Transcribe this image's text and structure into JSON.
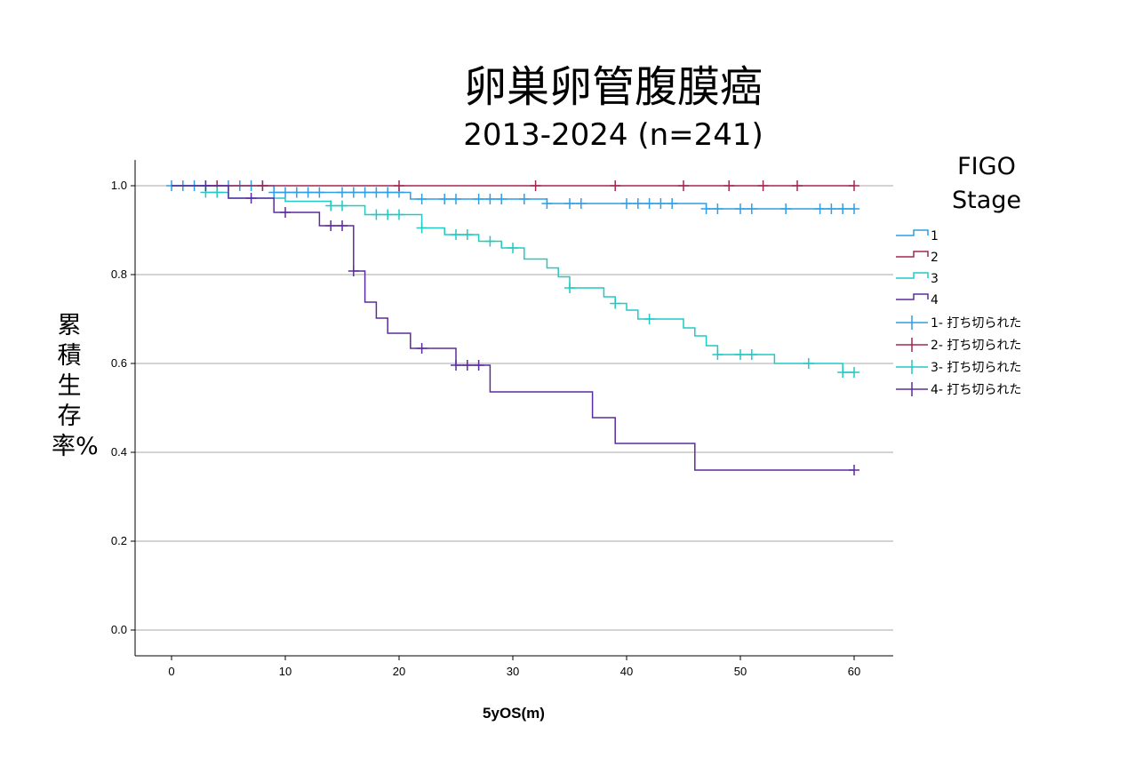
{
  "chart_data": {
    "type": "line",
    "title": "卵巣卵管腹膜癌",
    "subtitle": "2013-2024 (n=241)",
    "xlabel": "5yOS(m)",
    "ylabel": "累積生存率%",
    "xlim": [
      -3,
      63
    ],
    "ylim": [
      -0.05,
      1.06
    ],
    "xticks": [
      0,
      10,
      20,
      30,
      40,
      50,
      60
    ],
    "yticks": [
      0.0,
      0.2,
      0.4,
      0.6,
      0.8,
      1.0
    ],
    "ytick_labels": [
      "0.0",
      "0.2",
      "0.4",
      "0.6",
      "0.8",
      "1.0"
    ],
    "grid": "horizontal",
    "legend_title": "FIGO Stage",
    "legend_placement": "right",
    "series": [
      {
        "name": "1",
        "censor_label": "1- 打ち切られた",
        "color": "#2e9ee6",
        "steps": [
          [
            0,
            1.0
          ],
          [
            9,
            0.985
          ],
          [
            21,
            0.97
          ],
          [
            33,
            0.96
          ],
          [
            47,
            0.948
          ],
          [
            60,
            0.948
          ]
        ],
        "censored": [
          [
            0,
            1.0
          ],
          [
            1,
            1.0
          ],
          [
            2,
            1.0
          ],
          [
            3,
            1.0
          ],
          [
            5,
            1.0
          ],
          [
            6,
            1.0
          ],
          [
            7,
            1.0
          ],
          [
            8,
            1.0
          ],
          [
            9,
            0.985
          ],
          [
            10,
            0.985
          ],
          [
            11,
            0.985
          ],
          [
            12,
            0.985
          ],
          [
            13,
            0.985
          ],
          [
            15,
            0.985
          ],
          [
            16,
            0.985
          ],
          [
            17,
            0.985
          ],
          [
            18,
            0.985
          ],
          [
            19,
            0.985
          ],
          [
            20,
            0.985
          ],
          [
            22,
            0.97
          ],
          [
            24,
            0.97
          ],
          [
            25,
            0.97
          ],
          [
            27,
            0.97
          ],
          [
            28,
            0.97
          ],
          [
            29,
            0.97
          ],
          [
            31,
            0.97
          ],
          [
            33,
            0.96
          ],
          [
            35,
            0.96
          ],
          [
            36,
            0.96
          ],
          [
            40,
            0.96
          ],
          [
            41,
            0.96
          ],
          [
            42,
            0.96
          ],
          [
            43,
            0.96
          ],
          [
            44,
            0.96
          ],
          [
            47,
            0.948
          ],
          [
            48,
            0.948
          ],
          [
            50,
            0.948
          ],
          [
            51,
            0.948
          ],
          [
            54,
            0.948
          ],
          [
            57,
            0.948
          ],
          [
            58,
            0.948
          ],
          [
            59,
            0.948
          ],
          [
            60,
            0.948
          ]
        ]
      },
      {
        "name": "2",
        "censor_label": "2- 打ち切られた",
        "color": "#a3264f",
        "steps": [
          [
            0,
            1.0
          ],
          [
            60,
            1.0
          ]
        ],
        "censored": [
          [
            4,
            1.0
          ],
          [
            8,
            1.0
          ],
          [
            20,
            1.0
          ],
          [
            32,
            1.0
          ],
          [
            39,
            1.0
          ],
          [
            45,
            1.0
          ],
          [
            49,
            1.0
          ],
          [
            52,
            1.0
          ],
          [
            55,
            1.0
          ],
          [
            60,
            1.0
          ]
        ]
      },
      {
        "name": "3",
        "censor_label": "3- 打ち切られた",
        "color": "#21c9c2",
        "steps": [
          [
            0,
            1.0
          ],
          [
            3,
            0.985
          ],
          [
            5,
            0.972
          ],
          [
            10,
            0.965
          ],
          [
            14,
            0.955
          ],
          [
            17,
            0.935
          ],
          [
            22,
            0.905
          ],
          [
            24,
            0.89
          ],
          [
            27,
            0.875
          ],
          [
            29,
            0.86
          ],
          [
            31,
            0.835
          ],
          [
            33,
            0.815
          ],
          [
            34,
            0.795
          ],
          [
            35,
            0.77
          ],
          [
            38,
            0.75
          ],
          [
            39,
            0.735
          ],
          [
            40,
            0.72
          ],
          [
            41,
            0.7
          ],
          [
            45,
            0.68
          ],
          [
            46,
            0.662
          ],
          [
            47,
            0.64
          ],
          [
            48,
            0.62
          ],
          [
            53,
            0.6
          ],
          [
            59,
            0.58
          ],
          [
            60,
            0.58
          ]
        ],
        "censored": [
          [
            3,
            0.985
          ],
          [
            4,
            0.985
          ],
          [
            14,
            0.955
          ],
          [
            15,
            0.955
          ],
          [
            18,
            0.935
          ],
          [
            19,
            0.935
          ],
          [
            20,
            0.935
          ],
          [
            22,
            0.905
          ],
          [
            25,
            0.89
          ],
          [
            26,
            0.89
          ],
          [
            28,
            0.875
          ],
          [
            30,
            0.86
          ],
          [
            35,
            0.77
          ],
          [
            39,
            0.735
          ],
          [
            42,
            0.7
          ],
          [
            48,
            0.62
          ],
          [
            50,
            0.62
          ],
          [
            51,
            0.62
          ],
          [
            56,
            0.6
          ],
          [
            59,
            0.58
          ],
          [
            60,
            0.58
          ]
        ]
      },
      {
        "name": "4",
        "censor_label": "4- 打ち切られた",
        "color": "#5b2c9e",
        "steps": [
          [
            0,
            1.0
          ],
          [
            5,
            0.972
          ],
          [
            9,
            0.94
          ],
          [
            13,
            0.91
          ],
          [
            16,
            0.808
          ],
          [
            17,
            0.738
          ],
          [
            18,
            0.702
          ],
          [
            19,
            0.668
          ],
          [
            21,
            0.634
          ],
          [
            25,
            0.596
          ],
          [
            28,
            0.536
          ],
          [
            37,
            0.478
          ],
          [
            39,
            0.42
          ],
          [
            46,
            0.36
          ],
          [
            60,
            0.36
          ]
        ],
        "censored": [
          [
            3,
            1.0
          ],
          [
            7,
            0.972
          ],
          [
            10,
            0.94
          ],
          [
            14,
            0.91
          ],
          [
            15,
            0.91
          ],
          [
            16,
            0.808
          ],
          [
            22,
            0.634
          ],
          [
            25,
            0.596
          ],
          [
            26,
            0.596
          ],
          [
            27,
            0.596
          ],
          [
            60,
            0.36
          ]
        ]
      }
    ]
  }
}
